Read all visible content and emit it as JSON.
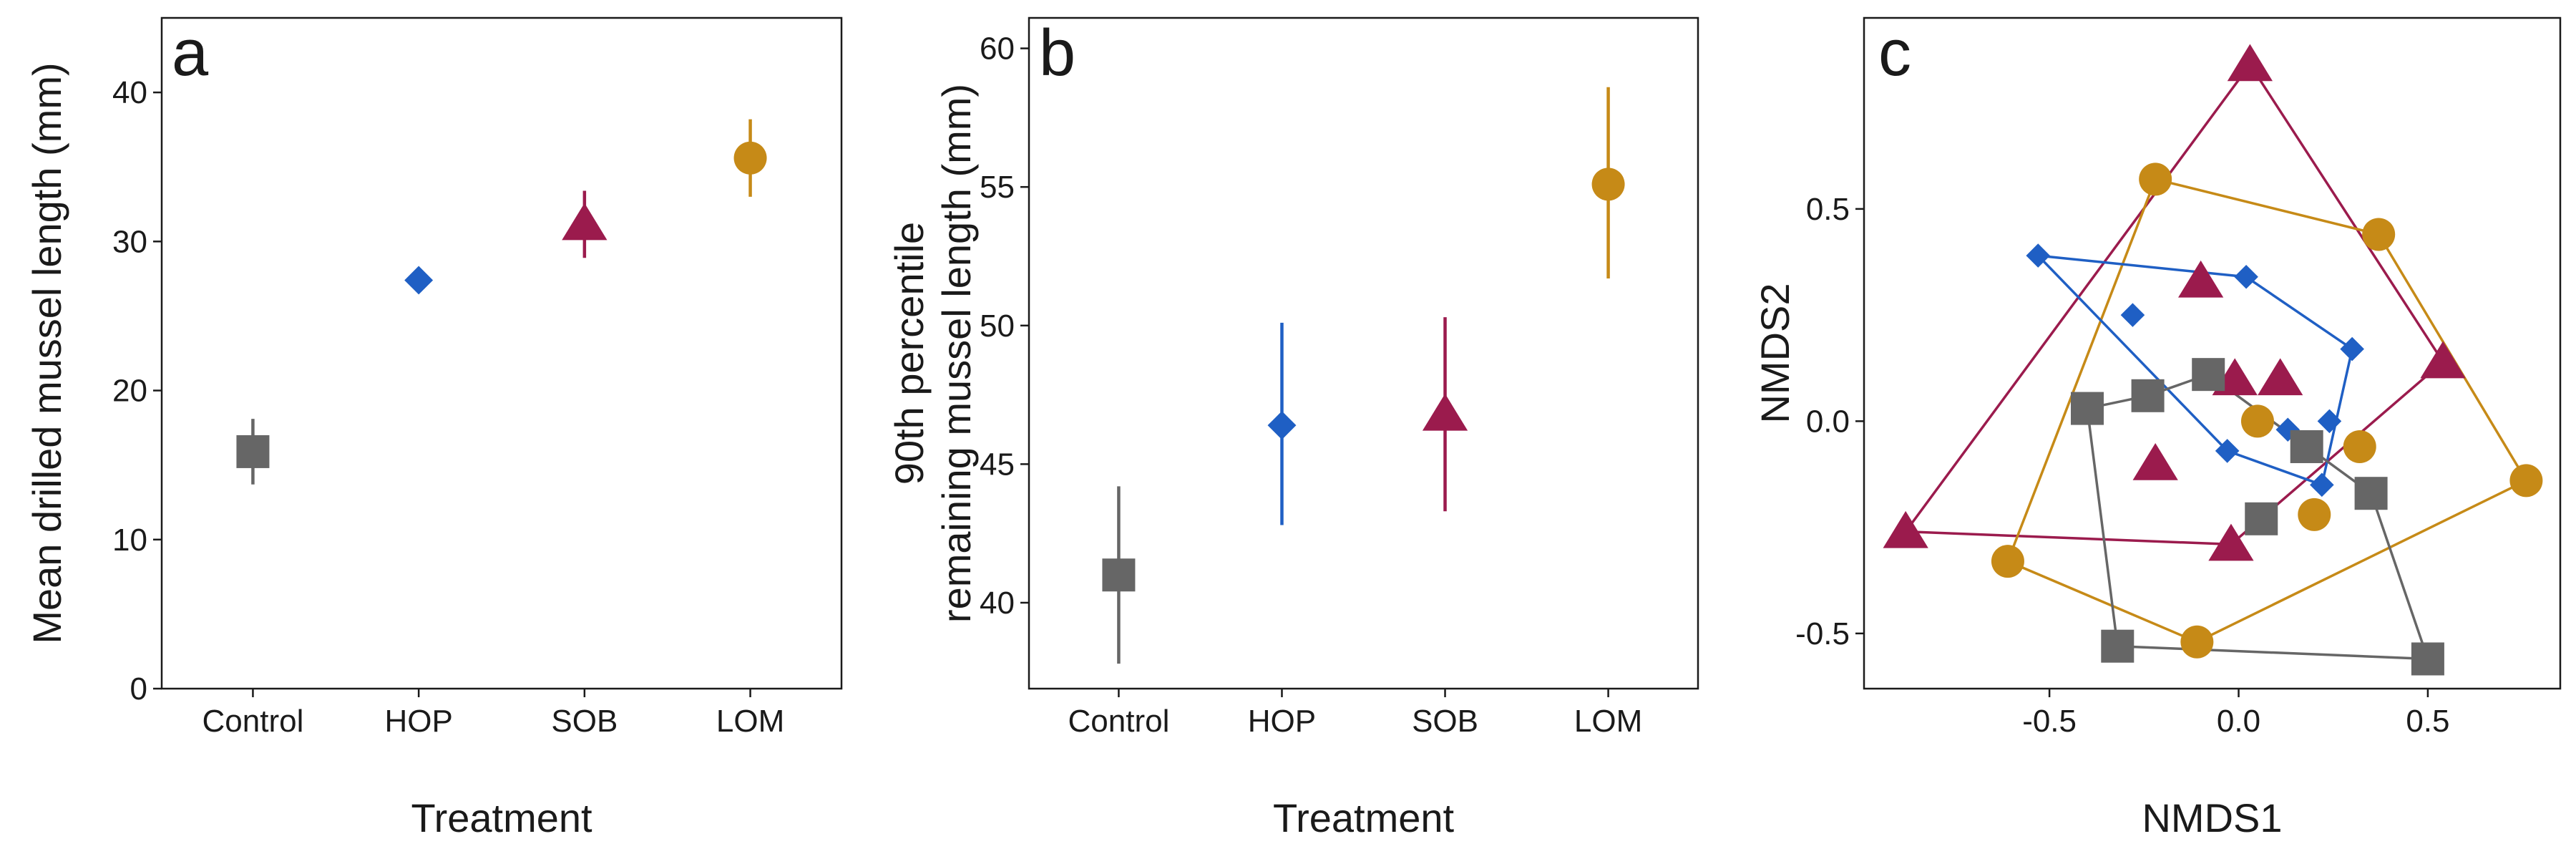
{
  "figure": {
    "panel_letters": [
      "a",
      "b",
      "c"
    ]
  },
  "colors": {
    "Control": "#666666",
    "HOP": "#1f5fc4",
    "SOB": "#9b1b4d",
    "LOM": "#c68a17"
  },
  "markers": {
    "Control": "square",
    "HOP": "diamond",
    "SOB": "triangle",
    "LOM": "circle"
  },
  "chart_data": [
    {
      "type": "scatter",
      "panel": "a",
      "xlabel": "Treatment",
      "ylabel": "Mean drilled mussel length (mm)",
      "categories": [
        "Control",
        "HOP",
        "SOB",
        "LOM"
      ],
      "values": [
        15.9,
        27.4,
        31.2,
        35.6
      ],
      "error_low": [
        13.7,
        27.4,
        28.9,
        33.0
      ],
      "error_high": [
        18.1,
        27.4,
        33.4,
        38.2
      ],
      "ylim": [
        0,
        45
      ],
      "yticks": [
        0,
        10,
        20,
        30,
        40
      ],
      "grid": false
    },
    {
      "type": "scatter",
      "panel": "b",
      "xlabel": "Treatment",
      "ylabel": [
        "90th percentile",
        "remaining mussel length (mm)"
      ],
      "categories": [
        "Control",
        "HOP",
        "SOB",
        "LOM"
      ],
      "values": [
        41.0,
        46.4,
        46.8,
        55.1
      ],
      "error_low": [
        37.8,
        42.8,
        43.3,
        51.7
      ],
      "error_high": [
        44.2,
        50.1,
        50.3,
        58.6
      ],
      "ylim": [
        36.9,
        61.1
      ],
      "yticks": [
        40,
        45,
        50,
        55,
        60
      ],
      "grid": false
    },
    {
      "type": "scatter",
      "panel": "c",
      "xlabel": "NMDS1",
      "ylabel": "NMDS2",
      "xlim": [
        -0.99,
        0.85
      ],
      "ylim": [
        -0.63,
        0.95
      ],
      "xticks": [
        -0.5,
        0.0,
        0.5
      ],
      "xtick_labels": [
        "-0.5",
        "0.0",
        "0.5"
      ],
      "yticks": [
        -0.5,
        0.0,
        0.5
      ],
      "ytick_labels": [
        "-0.5",
        "0.0",
        "0.5"
      ],
      "grid": false,
      "series": [
        {
          "group": "SOB",
          "points": [
            [
              0.03,
              0.84
            ],
            [
              0.54,
              0.14
            ],
            [
              -0.02,
              -0.29
            ],
            [
              -0.88,
              -0.26
            ],
            [
              -0.1,
              0.33
            ],
            [
              -0.01,
              0.1
            ],
            [
              0.11,
              0.1
            ],
            [
              -0.22,
              -0.1
            ]
          ],
          "hull": [
            [
              0.03,
              0.84
            ],
            [
              0.54,
              0.14
            ],
            [
              -0.02,
              -0.29
            ],
            [
              -0.88,
              -0.26
            ]
          ]
        },
        {
          "group": "LOM",
          "points": [
            [
              -0.22,
              0.57
            ],
            [
              0.37,
              0.44
            ],
            [
              0.76,
              -0.14
            ],
            [
              -0.11,
              -0.52
            ],
            [
              -0.61,
              -0.33
            ],
            [
              0.05,
              0.0
            ],
            [
              0.32,
              -0.06
            ],
            [
              0.2,
              -0.22
            ]
          ],
          "hull": [
            [
              -0.22,
              0.57
            ],
            [
              0.37,
              0.44
            ],
            [
              0.76,
              -0.14
            ],
            [
              -0.11,
              -0.52
            ],
            [
              -0.61,
              -0.33
            ]
          ]
        },
        {
          "group": "HOP",
          "points": [
            [
              -0.53,
              0.39
            ],
            [
              0.02,
              0.34
            ],
            [
              0.3,
              0.17
            ],
            [
              0.22,
              -0.15
            ],
            [
              -0.03,
              -0.07
            ],
            [
              -0.28,
              0.25
            ],
            [
              0.13,
              -0.02
            ],
            [
              0.24,
              0.0
            ]
          ],
          "hull": [
            [
              -0.53,
              0.39
            ],
            [
              0.02,
              0.34
            ],
            [
              0.3,
              0.17
            ],
            [
              0.22,
              -0.15
            ],
            [
              -0.03,
              -0.07
            ]
          ]
        },
        {
          "group": "Control",
          "points": [
            [
              -0.4,
              0.03
            ],
            [
              -0.24,
              0.06
            ],
            [
              -0.08,
              0.11
            ],
            [
              0.35,
              -0.17
            ],
            [
              0.5,
              -0.56
            ],
            [
              -0.32,
              -0.53
            ],
            [
              0.06,
              -0.23
            ],
            [
              0.18,
              -0.06
            ]
          ],
          "hull": [
            [
              -0.4,
              0.03
            ],
            [
              -0.24,
              0.06
            ],
            [
              -0.08,
              0.11
            ],
            [
              0.35,
              -0.17
            ],
            [
              0.5,
              -0.56
            ],
            [
              -0.32,
              -0.53
            ]
          ]
        }
      ]
    }
  ]
}
